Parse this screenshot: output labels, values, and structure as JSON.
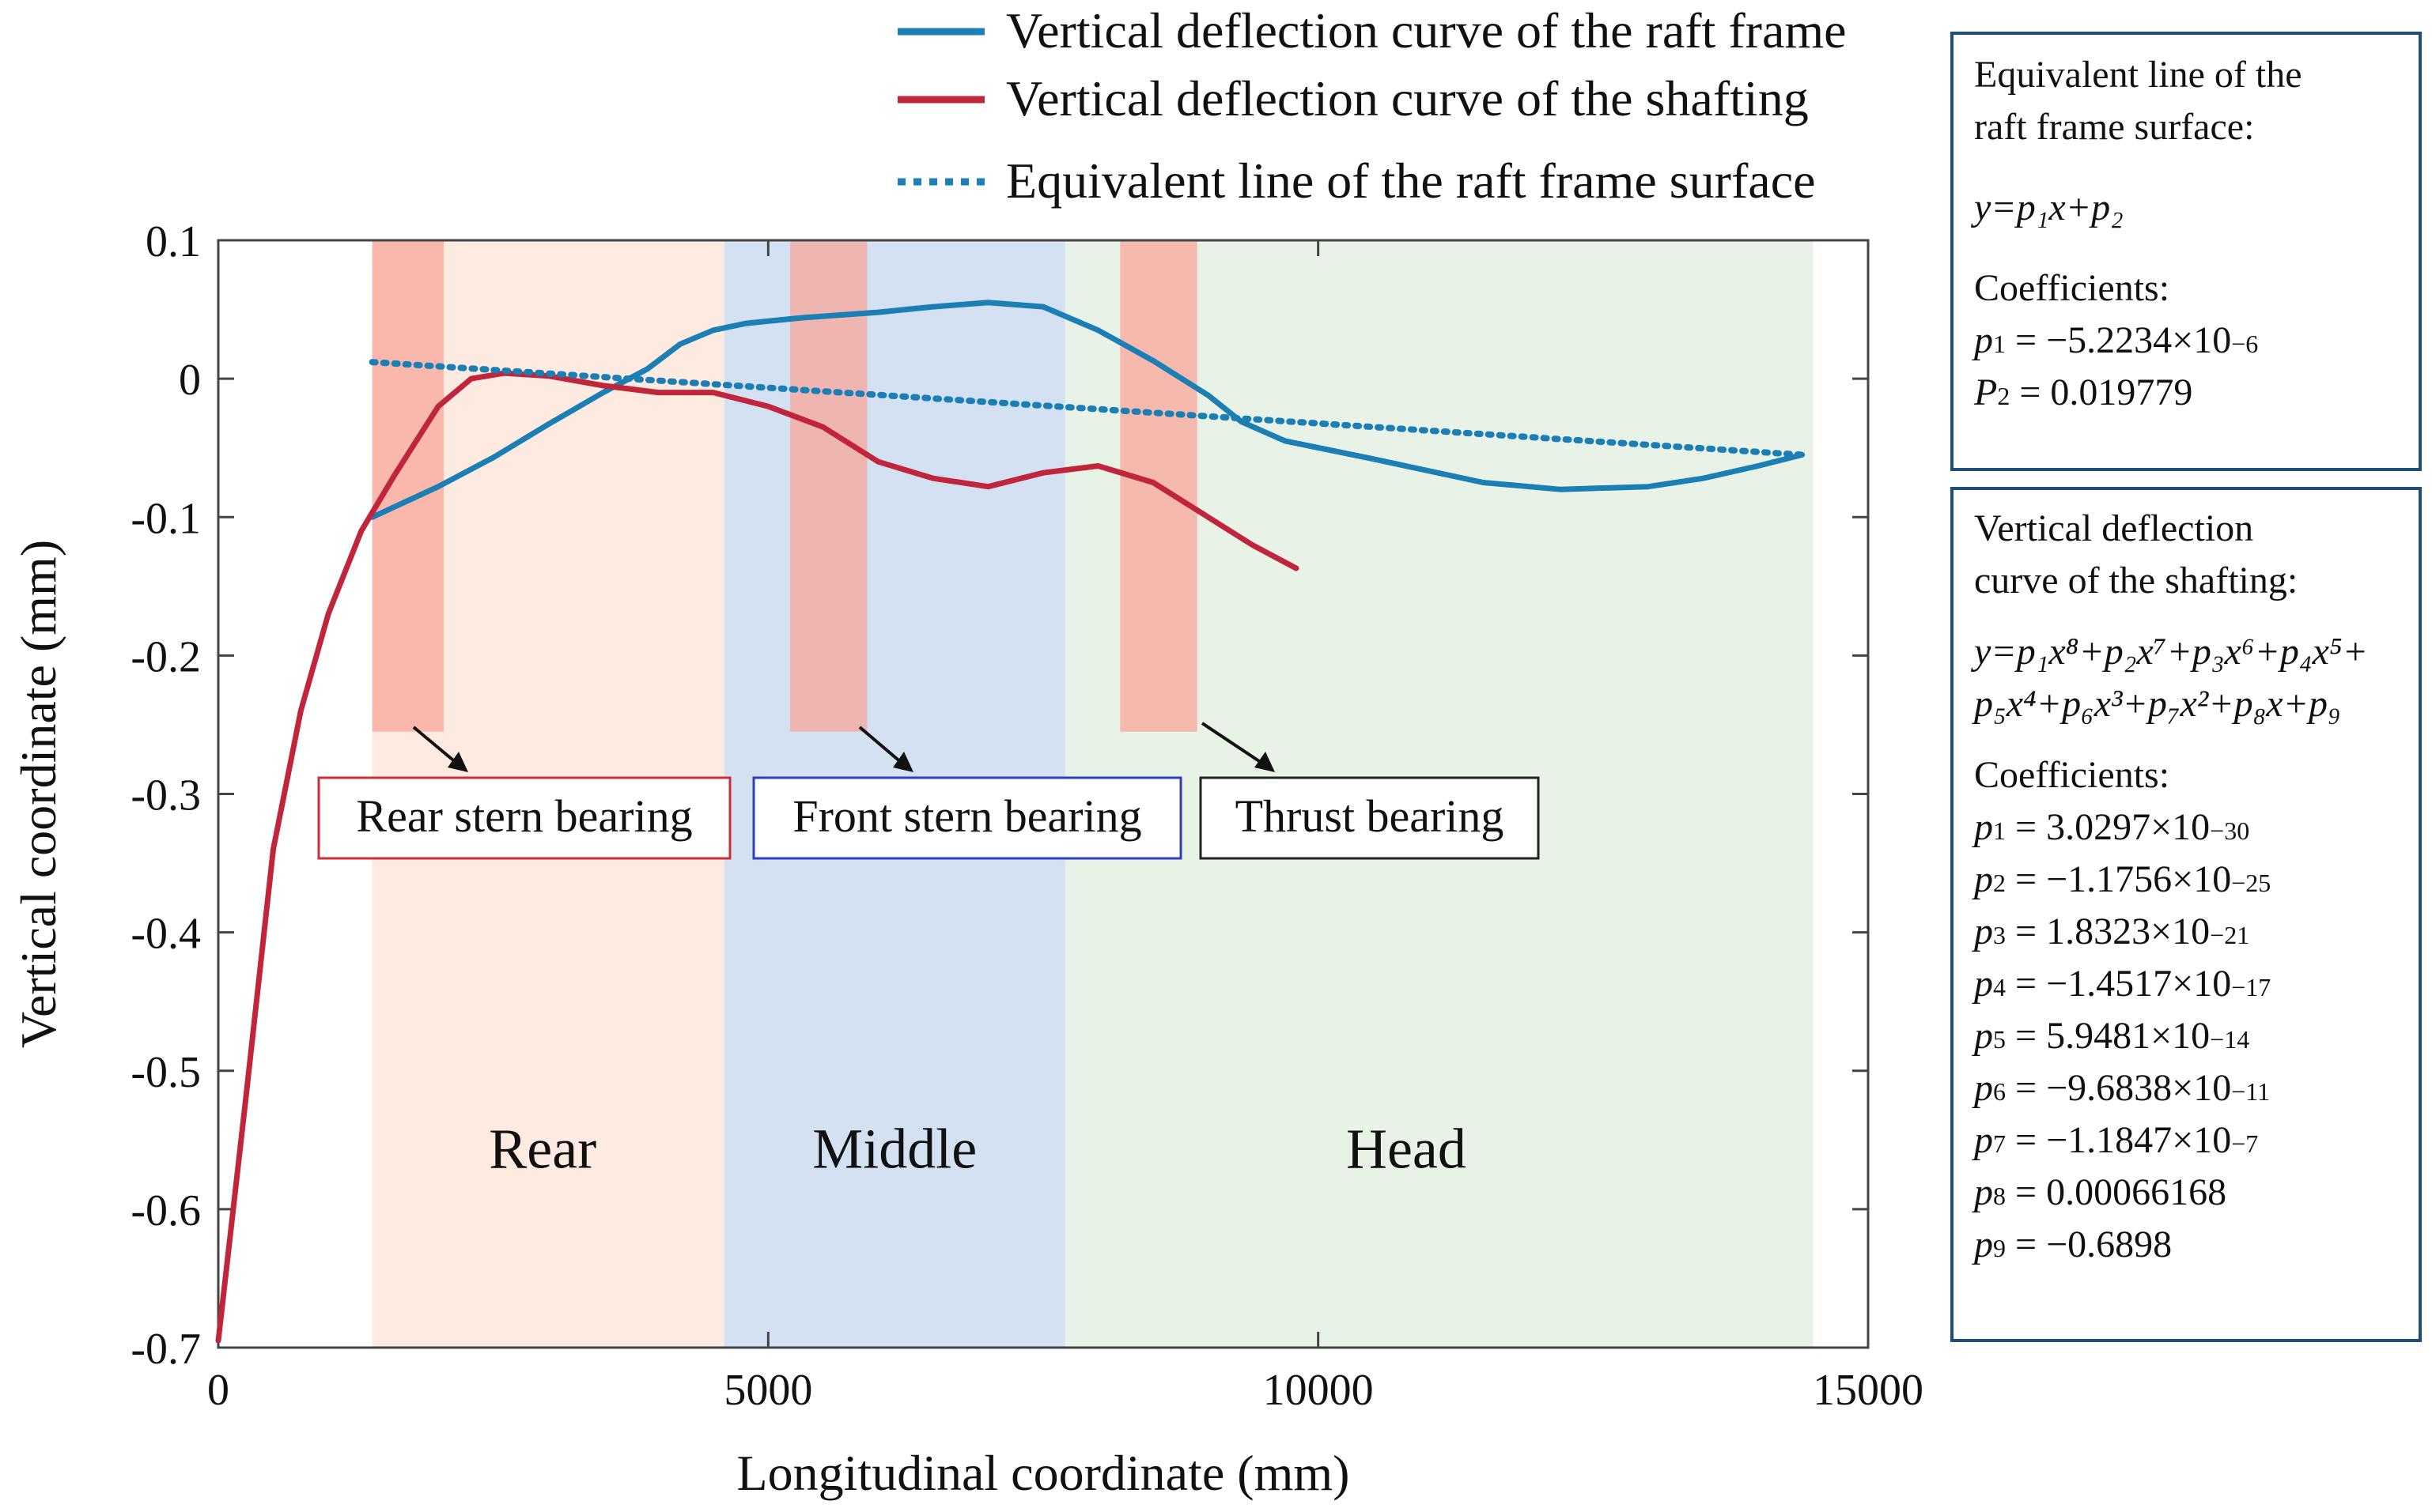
{
  "chart_data": {
    "type": "line",
    "xlabel": "Longitudinal coordinate (mm)",
    "ylabel": "Vertical coordinate (mm)",
    "xlim": [
      0,
      15000
    ],
    "ylim": [
      -0.7,
      0.1
    ],
    "xticks": [
      0,
      5000,
      10000,
      15000
    ],
    "yticks": [
      0.1,
      0,
      -0.1,
      -0.2,
      -0.3,
      -0.4,
      -0.5,
      -0.6,
      -0.7
    ],
    "xtick_labels": [
      "0",
      "5000",
      "10000",
      "15000"
    ],
    "ytick_labels": [
      "0.1",
      "0",
      "-0.1",
      "-0.2",
      "-0.3",
      "-0.4",
      "-0.5",
      "-0.6",
      "-0.7"
    ],
    "legend_position": "top",
    "series": [
      {
        "name": "Vertical deflection curve of the raft frame",
        "color": "#1b7fb5",
        "style": "solid",
        "points": [
          [
            1400,
            -0.1
          ],
          [
            2000,
            -0.078
          ],
          [
            2500,
            -0.057
          ],
          [
            3000,
            -0.033
          ],
          [
            3500,
            -0.01
          ],
          [
            3900,
            0.007
          ],
          [
            4200,
            0.025
          ],
          [
            4500,
            0.035
          ],
          [
            4800,
            0.04
          ],
          [
            5300,
            0.044
          ],
          [
            6000,
            0.048
          ],
          [
            6500,
            0.052
          ],
          [
            7000,
            0.055
          ],
          [
            7500,
            0.052
          ],
          [
            8000,
            0.035
          ],
          [
            8500,
            0.013
          ],
          [
            9000,
            -0.012
          ],
          [
            9300,
            -0.031
          ],
          [
            9700,
            -0.045
          ],
          [
            10500,
            -0.058
          ],
          [
            11500,
            -0.075
          ],
          [
            12200,
            -0.08
          ],
          [
            13000,
            -0.078
          ],
          [
            13500,
            -0.072
          ],
          [
            14000,
            -0.063
          ],
          [
            14400,
            -0.055
          ]
        ]
      },
      {
        "name": "Vertical deflection curve of the shafting",
        "color": "#c0253c",
        "style": "solid",
        "points": [
          [
            0,
            -0.695
          ],
          [
            250,
            -0.52
          ],
          [
            500,
            -0.34
          ],
          [
            750,
            -0.24
          ],
          [
            1000,
            -0.17
          ],
          [
            1300,
            -0.11
          ],
          [
            1600,
            -0.07
          ],
          [
            1800,
            -0.045
          ],
          [
            2000,
            -0.02
          ],
          [
            2300,
            0.0
          ],
          [
            2600,
            0.004
          ],
          [
            3000,
            0.002
          ],
          [
            3500,
            -0.005
          ],
          [
            4000,
            -0.01
          ],
          [
            4500,
            -0.01
          ],
          [
            5000,
            -0.02
          ],
          [
            5500,
            -0.035
          ],
          [
            6000,
            -0.06
          ],
          [
            6500,
            -0.072
          ],
          [
            7000,
            -0.078
          ],
          [
            7500,
            -0.068
          ],
          [
            8000,
            -0.063
          ],
          [
            8500,
            -0.075
          ],
          [
            9000,
            -0.1
          ],
          [
            9400,
            -0.12
          ],
          [
            9800,
            -0.137
          ]
        ]
      },
      {
        "name": "Equivalent line of the raft frame surface",
        "color": "#1b7fb5",
        "style": "dotted",
        "points": [
          [
            1400,
            0.012
          ],
          [
            14400,
            -0.055
          ]
        ]
      }
    ],
    "regions": [
      {
        "label": "Rear",
        "x_start": 1400,
        "x_end": 4600,
        "color": "#fdeae0"
      },
      {
        "label": "Middle",
        "x_start": 4600,
        "x_end": 7700,
        "color": "#d4e1f3"
      },
      {
        "label": "Head",
        "x_start": 7700,
        "x_end": 14500,
        "color": "#e9f2e6"
      }
    ],
    "bearings": [
      {
        "label": "Rear stern bearing",
        "x_start": 1400,
        "x_end": 2050,
        "y_bottom": -0.255,
        "border_color": "#cc2f35"
      },
      {
        "label": "Front stern bearing",
        "x_start": 5200,
        "x_end": 5900,
        "y_bottom": -0.255,
        "border_color": "#2c3fc0"
      },
      {
        "label": "Thrust bearing",
        "x_start": 8200,
        "x_end": 8900,
        "y_bottom": -0.255,
        "border_color": "#222222"
      }
    ],
    "bearing_fill": "#f8a59b",
    "annotation_box_1": {
      "title_line1": "Equivalent line of the",
      "title_line2": "raft frame surface:",
      "equation": "y=p₁x+p₂",
      "coef_title": "Coefficients:",
      "coefficients": [
        {
          "name": "p",
          "sub": "1",
          "value": "−5.2234×10",
          "exp": "−6"
        },
        {
          "name": "P",
          "sub": "2",
          "value": "0.019779",
          "exp": ""
        }
      ]
    },
    "annotation_box_2": {
      "title_line1": "Vertical deflection",
      "title_line2": "curve of the shafting:",
      "equation_line1": "y=p₁x⁸+p₂x⁷+p₃x⁶+p₄x⁵+",
      "equation_line2": "p₅x⁴+p₆x³+p₇x²+p₈x+p₉",
      "coef_title": "Coefficients:",
      "coefficients": [
        {
          "name": "p",
          "sub": "1",
          "value": "3.0297×10",
          "exp": "−30"
        },
        {
          "name": "p",
          "sub": "2",
          "value": "−1.1756×10",
          "exp": "−25"
        },
        {
          "name": "p",
          "sub": "3",
          "value": "1.8323×10",
          "exp": "−21"
        },
        {
          "name": "p",
          "sub": "4",
          "value": "−1.4517×10",
          "exp": "−17"
        },
        {
          "name": "p",
          "sub": "5",
          "value": "5.9481×10",
          "exp": "−14"
        },
        {
          "name": "p",
          "sub": "6",
          "value": "−9.6838×10",
          "exp": "−11"
        },
        {
          "name": "p",
          "sub": "7",
          "value": "−1.1847×10",
          "exp": "−7"
        },
        {
          "name": "p",
          "sub": "8",
          "value": "0.00066168",
          "exp": ""
        },
        {
          "name": "p",
          "sub": "9",
          "value": "−0.6898",
          "exp": ""
        }
      ]
    }
  }
}
